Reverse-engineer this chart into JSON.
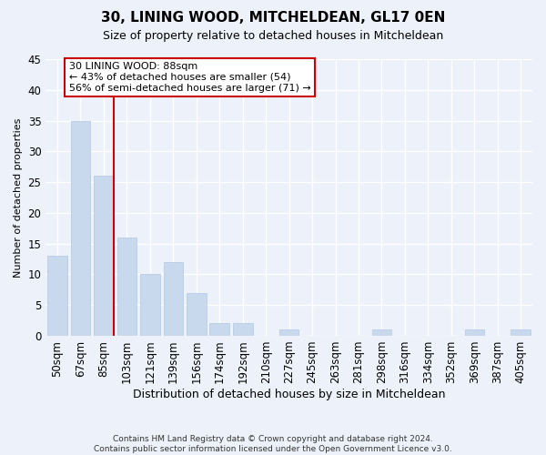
{
  "title": "30, LINING WOOD, MITCHELDEAN, GL17 0EN",
  "subtitle": "Size of property relative to detached houses in Mitcheldean",
  "xlabel": "Distribution of detached houses by size in Mitcheldean",
  "ylabel": "Number of detached properties",
  "categories": [
    "50sqm",
    "67sqm",
    "85sqm",
    "103sqm",
    "121sqm",
    "139sqm",
    "156sqm",
    "174sqm",
    "192sqm",
    "210sqm",
    "227sqm",
    "245sqm",
    "263sqm",
    "281sqm",
    "298sqm",
    "316sqm",
    "334sqm",
    "352sqm",
    "369sqm",
    "387sqm",
    "405sqm"
  ],
  "values": [
    13,
    35,
    26,
    16,
    10,
    12,
    7,
    2,
    2,
    0,
    1,
    0,
    0,
    0,
    1,
    0,
    0,
    0,
    1,
    0,
    1
  ],
  "bar_color": "#c8d9ee",
  "bar_edgecolor": "#b0c8e4",
  "redline_index": 2,
  "redline_label": "30 LINING WOOD: 88sqm",
  "annotation_line2": "← 43% of detached houses are smaller (54)",
  "annotation_line3": "56% of semi-detached houses are larger (71) →",
  "ylim": [
    0,
    45
  ],
  "yticks": [
    0,
    5,
    10,
    15,
    20,
    25,
    30,
    35,
    40,
    45
  ],
  "footer1": "Contains HM Land Registry data © Crown copyright and database right 2024.",
  "footer2": "Contains public sector information licensed under the Open Government Licence v3.0.",
  "bg_color": "#edf1f9",
  "plot_bg_color": "#edf1f9",
  "grid_color": "#ffffff",
  "annotation_box_facecolor": "#ffffff",
  "annotation_box_edgecolor": "#cc0000",
  "redline_color": "#cc0000",
  "title_fontsize": 11,
  "subtitle_fontsize": 9,
  "ylabel_fontsize": 8,
  "xlabel_fontsize": 9,
  "footer_fontsize": 6.5,
  "tick_fontsize": 8.5,
  "annotation_fontsize": 8
}
